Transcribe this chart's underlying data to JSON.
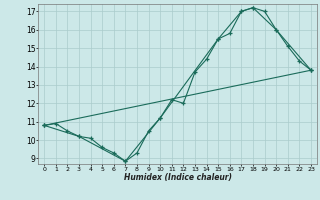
{
  "xlabel": "Humidex (Indice chaleur)",
  "xlim": [
    -0.5,
    23.5
  ],
  "ylim": [
    8.7,
    17.4
  ],
  "xticks": [
    0,
    1,
    2,
    3,
    4,
    5,
    6,
    7,
    8,
    9,
    10,
    11,
    12,
    13,
    14,
    15,
    16,
    17,
    18,
    19,
    20,
    21,
    22,
    23
  ],
  "yticks": [
    9,
    10,
    11,
    12,
    13,
    14,
    15,
    16,
    17
  ],
  "bg_color": "#cce8e8",
  "grid_color": "#aacccc",
  "line_color": "#1a6b5a",
  "lines": [
    {
      "x": [
        0,
        1,
        2,
        3,
        4,
        5,
        6,
        7,
        8,
        9,
        10,
        11,
        12,
        13,
        14,
        15,
        16,
        17,
        18,
        19,
        20,
        21,
        22,
        23
      ],
      "y": [
        10.8,
        10.9,
        10.5,
        10.2,
        10.1,
        9.6,
        9.3,
        8.85,
        9.3,
        10.5,
        11.2,
        12.2,
        12.0,
        13.7,
        14.4,
        15.5,
        15.8,
        17.0,
        17.2,
        17.0,
        16.0,
        15.1,
        14.3,
        13.8
      ]
    },
    {
      "x": [
        0,
        3,
        7,
        10,
        15,
        17,
        18,
        20,
        23
      ],
      "y": [
        10.8,
        10.2,
        8.85,
        11.2,
        15.5,
        17.0,
        17.2,
        16.0,
        13.8
      ]
    },
    {
      "x": [
        0,
        23
      ],
      "y": [
        10.8,
        13.8
      ]
    }
  ]
}
